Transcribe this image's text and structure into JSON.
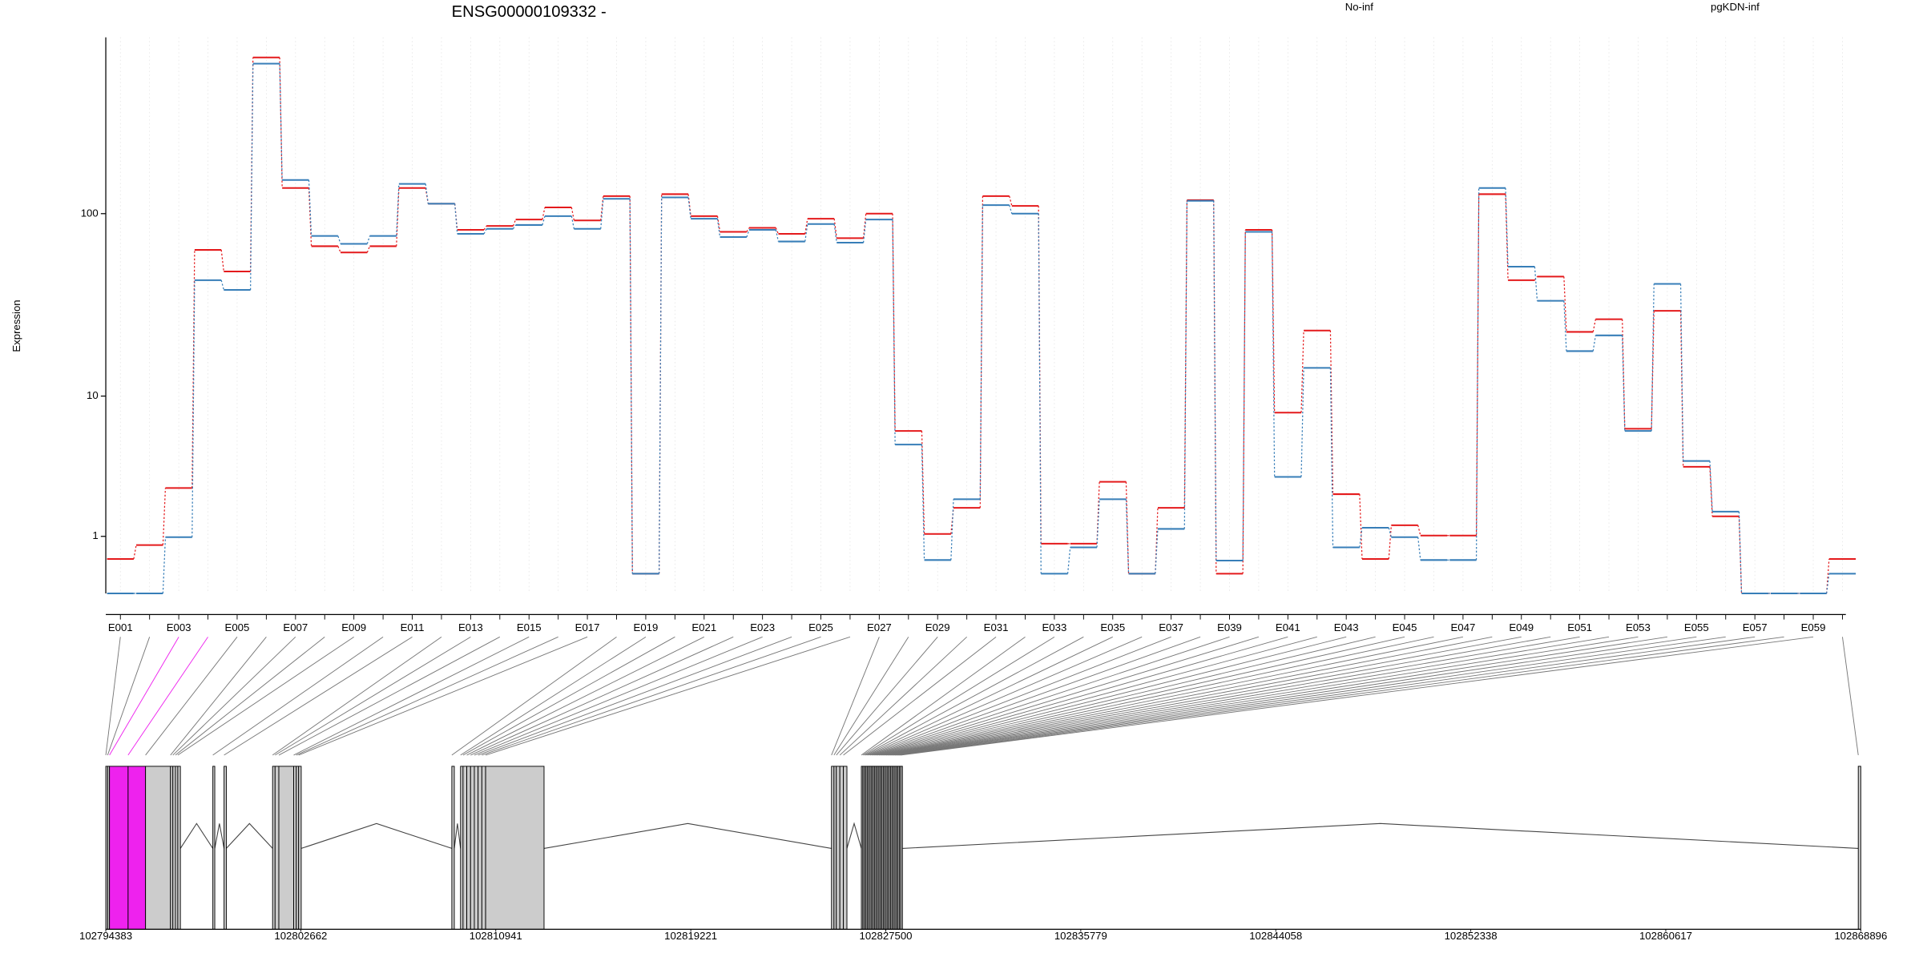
{
  "chart_data": [
    {
      "type": "step",
      "title": "ENSG00000109332 -",
      "y_label": "Expression",
      "scale": "log1p",
      "grid": true,
      "categories": [
        "E001",
        null,
        "E003",
        null,
        "E005",
        null,
        "E007",
        null,
        "E009",
        null,
        "E011",
        null,
        "E013",
        null,
        "E015",
        null,
        "E017",
        null,
        "E019",
        null,
        "E021",
        null,
        "E023",
        null,
        "E025",
        null,
        "E027",
        null,
        "E029",
        null,
        "E031",
        null,
        "E033",
        null,
        "E035",
        null,
        "E037",
        null,
        "E039",
        null,
        "E041",
        null,
        "E043",
        null,
        "E045",
        null,
        "E047",
        null,
        "E049",
        null,
        "E051",
        null,
        "E053",
        null,
        "E055",
        null,
        "E057",
        null,
        "E059",
        null
      ],
      "series": [
        {
          "name": "No-inf",
          "color": "#e41a1c",
          "values": [
            0.52,
            0.8,
            2.6,
            64,
            49,
            673,
            137,
            67,
            62,
            67,
            137,
            113,
            82,
            86,
            93,
            108,
            92,
            124,
            0.27,
            127,
            97,
            80,
            84,
            78,
            94,
            74,
            100,
            6.2,
            1.06,
            1.83,
            124,
            110,
            0.83,
            0.83,
            2.88,
            0.27,
            1.83,
            118,
            0.27,
            82,
            8,
            23.4,
            2.34,
            0.52,
            1.29,
            1.02,
            1.02,
            127,
            44,
            46,
            23,
            27,
            6.4,
            30,
            3.66,
            1.55,
            0,
            0,
            0,
            0.52
          ]
        },
        {
          "name": "pgKDN-inf",
          "color": "#377eb8",
          "values": [
            0,
            0,
            0.98,
            44,
            39,
            624,
            151,
            76,
            69,
            76,
            144,
            113,
            78,
            83,
            87,
            97,
            83,
            120,
            0.27,
            122,
            94,
            75,
            82,
            71,
            88,
            70,
            93,
            5.1,
            0.5,
            2.14,
            111,
            100,
            0.27,
            0.75,
            2.14,
            0.27,
            1.19,
            117,
            0.49,
            80,
            3.12,
            14.5,
            0.75,
            1.22,
            0.98,
            0.5,
            0.5,
            137,
            52,
            34,
            18,
            22,
            6.2,
            42,
            4,
            1.7,
            0,
            0,
            0,
            0.27
          ]
        }
      ],
      "ylim": [
        0,
        860
      ],
      "yticks": [
        1,
        10,
        100
      ]
    },
    {
      "type": "gene-model",
      "color": "#cccccc",
      "highlight": [
        2,
        3
      ],
      "highlight_color": "#ee22ee",
      "exon_start": [
        102794383,
        102794460,
        102794540,
        102795330,
        102796070,
        102797130,
        102797230,
        102797340,
        102797440,
        102798928,
        102799404,
        102801465,
        102801570,
        102801730,
        102802360,
        102802470,
        102802570,
        102809075,
        102809445,
        102809550,
        102809710,
        102809870,
        102810030,
        102810190,
        102810350,
        102810510,
        102825195,
        102825300,
        102825400,
        102825550,
        102825700,
        102826463,
        102826525,
        102826587,
        102826649,
        102826711,
        102826773,
        102826835,
        102826897,
        102826959,
        102827021,
        102827083,
        102827145,
        102827207,
        102827269,
        102827331,
        102827393,
        102827455,
        102827517,
        102827579,
        102827641,
        102827703,
        102827765,
        102827827,
        102827889,
        102827951,
        102828013,
        102828075,
        102828137,
        102868790
      ],
      "exon_end": [
        102794460,
        102794540,
        102795330,
        102796070,
        102797130,
        102797230,
        102797340,
        102797440,
        102797550,
        102799010,
        102799500,
        102801570,
        102801730,
        102802360,
        102802470,
        102802570,
        102802680,
        102809180,
        102809550,
        102809710,
        102809870,
        102810030,
        102810190,
        102810350,
        102810510,
        102812990,
        102825300,
        102825400,
        102825550,
        102825700,
        102825850,
        102826525,
        102826587,
        102826649,
        102826711,
        102826773,
        102826835,
        102826897,
        102826959,
        102827021,
        102827083,
        102827145,
        102827207,
        102827269,
        102827331,
        102827393,
        102827455,
        102827517,
        102827579,
        102827641,
        102827703,
        102827765,
        102827827,
        102827889,
        102827951,
        102828013,
        102828075,
        102828137,
        102828207,
        102868896
      ],
      "xlim": [
        102794383,
        102868896
      ],
      "xticks": [
        102794383,
        102802662,
        102810941,
        102819221,
        102827500,
        102835779,
        102844058,
        102852338,
        102860617,
        102868896
      ]
    }
  ]
}
